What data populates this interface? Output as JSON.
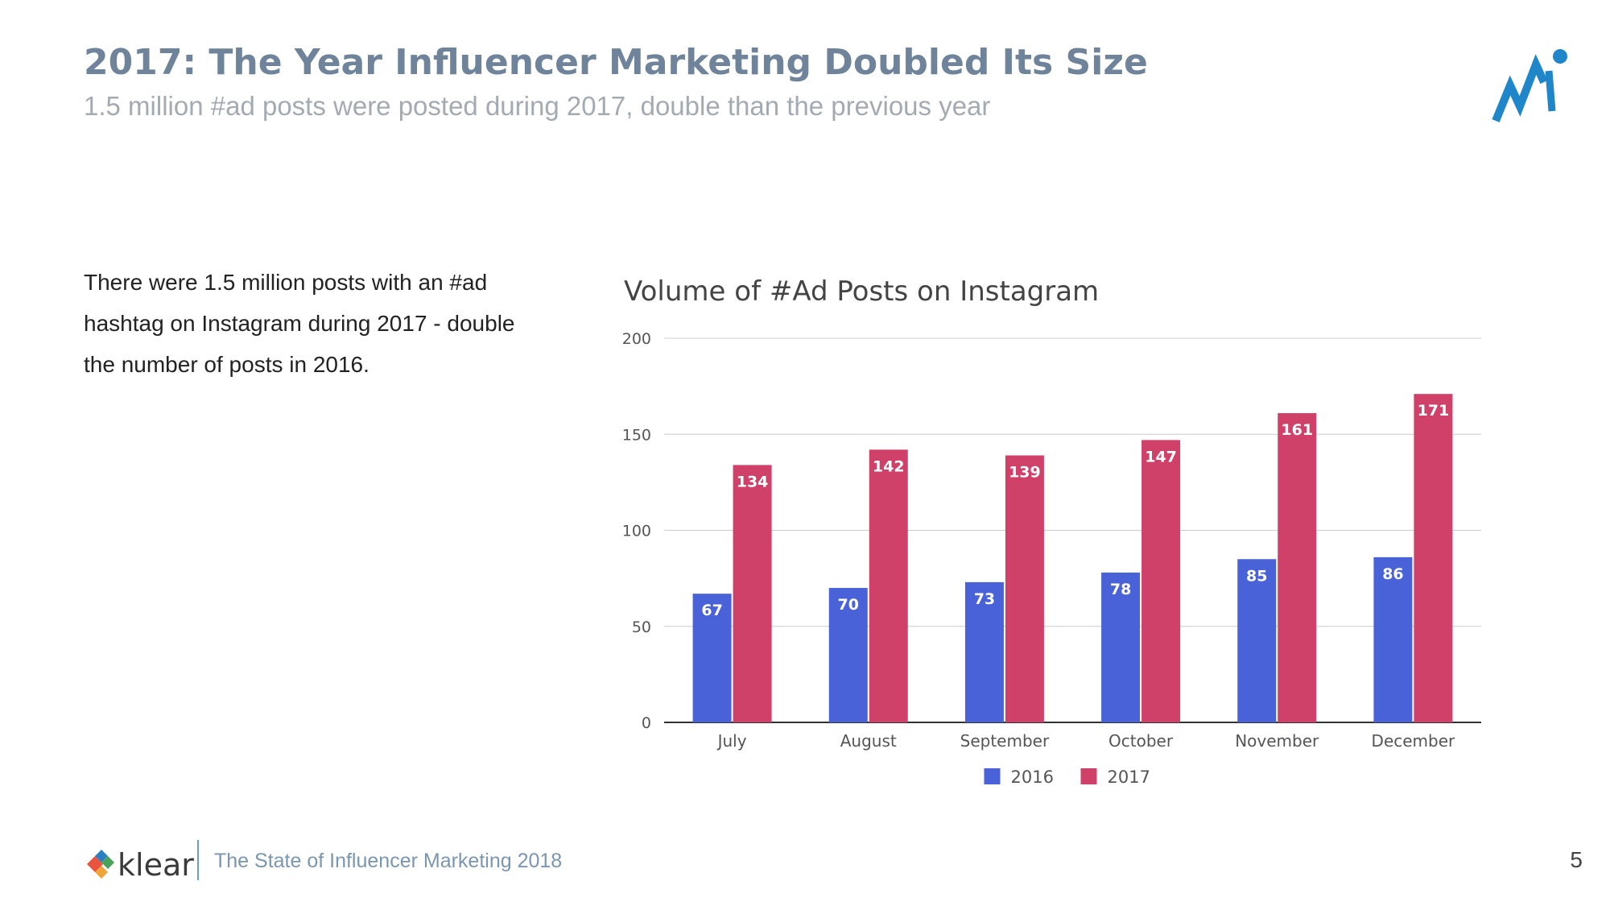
{
  "slide": {
    "title": "2017: The Year Influencer Marketing Doubled Its Size",
    "subtitle": "1.5 million #ad posts were posted during 2017, double than the previous year",
    "body_text": "There were 1.5 million posts with an #ad hashtag on Instagram during 2017 - double the number of posts in 2016.",
    "page_number": "5"
  },
  "footer": {
    "brand": "klear",
    "report_title": "The State of Influencer Marketing 2018"
  },
  "colors": {
    "title": "#6f849a",
    "series_2016": "#4a62d8",
    "series_2017": "#d0416a",
    "logo_accent": "#1f86c9"
  },
  "chart_data": {
    "type": "bar",
    "title": "Volume of #Ad Posts on Instagram",
    "categories": [
      "July",
      "August",
      "September",
      "October",
      "November",
      "December"
    ],
    "series": [
      {
        "name": "2016",
        "values": [
          67,
          70,
          73,
          78,
          85,
          86
        ],
        "color": "#4a62d8"
      },
      {
        "name": "2017",
        "values": [
          134,
          142,
          139,
          147,
          161,
          171
        ],
        "color": "#d0416a"
      }
    ],
    "ylim": [
      0,
      200
    ],
    "yticks": [
      0,
      50,
      100,
      150,
      200
    ],
    "grid": true,
    "legend_position": "bottom-center",
    "data_labels": true
  }
}
